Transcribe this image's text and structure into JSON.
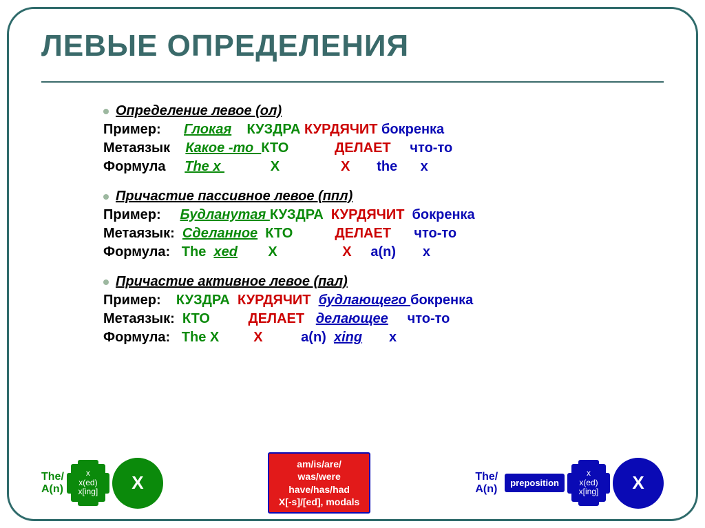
{
  "title": "ЛЕВЫЕ ОПРЕДЕЛЕНИЯ",
  "sections": [
    {
      "head": "Определение левое (ол)",
      "rows": {
        "r1_label": "Пример:      ",
        "r1_a": "Глокая",
        "r1_b": "    КУЗДРА ",
        "r1_c": "КУРДЯЧИТ ",
        "r1_d": "бокренка",
        "r2_label": "Метаязык    ",
        "r2_a": "Какое -то  ",
        "r2_b": "КТО            ",
        "r2_c": "ДЕЛАЕТ     ",
        "r2_d": "что-то",
        "r3_label": "Формула     ",
        "r3_a": "The x ",
        "r3_b": "            X                ",
        "r3_c": "X       ",
        "r3_d": "the      x"
      }
    },
    {
      "head": "Причастие пассивное левое (ппл)",
      "rows": {
        "r1_label": "Пример:     ",
        "r1_a": "Будланутая ",
        "r1_b": "КУЗДРА  ",
        "r1_c": "КУРДЯЧИТ  ",
        "r1_d": "бокренка",
        "r2_label": "Метаязык:  ",
        "r2_a": "Сделанное",
        "r2_b": "  КТО           ",
        "r2_c": "ДЕЛАЕТ      ",
        "r2_d": "что-то",
        "r3_label": "Формула:   ",
        "r3_pre": "The  ",
        "r3_a": "xed",
        "r3_b": "        X                 ",
        "r3_c": "X     ",
        "r3_d": "a(n)       x"
      }
    },
    {
      "head": "Причастие активное левое (пал)",
      "rows": {
        "r1_label": "Пример:    ",
        "r1_a": "КУЗДРА  ",
        "r1_b": "КУРДЯЧИТ  ",
        "r1_c": "будлающего ",
        "r1_d": "бокренка",
        "r2_label": "Метаязык:  ",
        "r2_a": "КТО          ",
        "r2_b": "ДЕЛАЕТ   ",
        "r2_c": "делающее",
        "r2_d": "     что-то",
        "r3_label": "Формула:   ",
        "r3_a": "The X         ",
        "r3_b": "X          ",
        "r3_c_pre": "a(n)  ",
        "r3_c": "xing",
        "r3_d": "       x"
      }
    }
  ],
  "diagram": {
    "the_an_1": "The/",
    "the_an_2": "A(n)",
    "sq_line1": "x",
    "sq_line2": "x(ed)",
    "sq_line3": "x[ing]",
    "circle_x": "X",
    "red_line1": "am/is/are/",
    "red_line2": "was/were",
    "red_line3": "have/has/had",
    "red_line4": "X[-s]/[ed], modals",
    "prep": "preposition"
  },
  "colors": {
    "frame": "#2f6b6b",
    "title": "#3a6a6a",
    "green": "#0b8a0b",
    "red": "#cc0000",
    "blue": "#0a0ab5",
    "red_box": "#e21a1a"
  }
}
